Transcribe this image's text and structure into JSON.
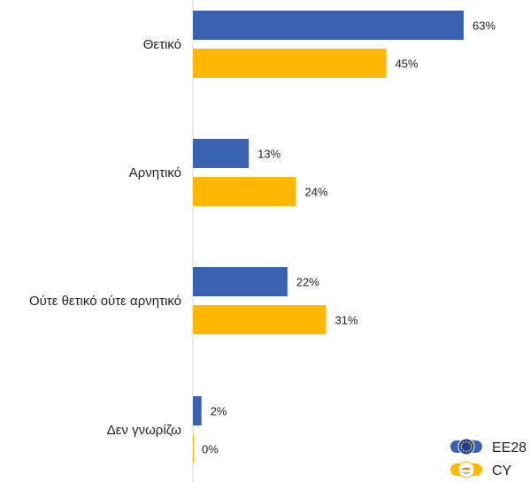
{
  "chart_data": {
    "type": "bar",
    "orientation": "horizontal",
    "unit": "%",
    "categories": [
      "Θετικό",
      "Αρνητικό",
      "Ούτε θετικό ούτε αρνητικό",
      "Δεν γνωρίζω"
    ],
    "series": [
      {
        "name": "EE28",
        "values": [
          63,
          13,
          22,
          2
        ],
        "color": "#3a62b0",
        "flag_icon": "eu-flag-icon"
      },
      {
        "name": "CY",
        "values": [
          45,
          24,
          31,
          0
        ],
        "color": "#ffb800",
        "flag_icon": "cyprus-flag-icon"
      }
    ],
    "xlim": [
      0,
      63
    ],
    "grid": false,
    "legend_position": "bottom-right"
  }
}
